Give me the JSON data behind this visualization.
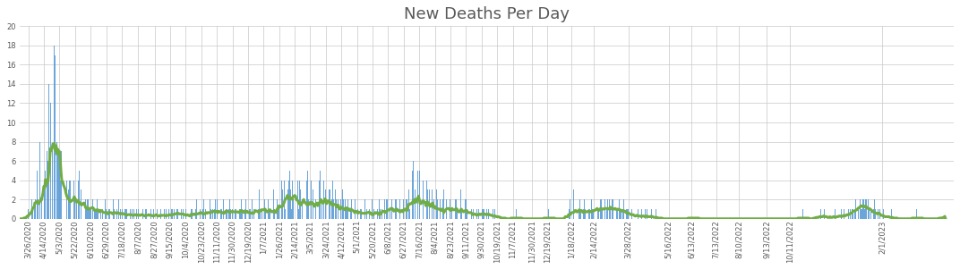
{
  "title": "New Deaths Per Day",
  "title_fontsize": 13,
  "title_color": "#595959",
  "bar_color": "#5B9BD5",
  "bar_alpha": 0.9,
  "line_color": "#70AD47",
  "line_width": 2.2,
  "ylim": [
    0,
    20
  ],
  "yticks": [
    0,
    2,
    4,
    6,
    8,
    10,
    12,
    14,
    16,
    18,
    20
  ],
  "background_color": "#FFFFFF",
  "grid_color": "#C8C8C8",
  "tick_label_color": "#595959",
  "tick_fontsize": 6.0,
  "smoothing_sigma": 7,
  "date_start": "2020-03-16",
  "x_tick_dates": [
    "3/26/2020",
    "4/14/2020",
    "5/3/2020",
    "5/22/2020",
    "6/10/2020",
    "6/29/2020",
    "7/18/2020",
    "8/7/2020",
    "8/27/2020",
    "9/15/2020",
    "10/4/2020",
    "10/23/2020",
    "11/11/2020",
    "11/30/2020",
    "12/19/2020",
    "1/7/2021",
    "1/26/2021",
    "2/14/2021",
    "3/5/2021",
    "3/24/2021",
    "4/12/2021",
    "5/1/2021",
    "5/20/2021",
    "6/8/2021",
    "6/27/2021",
    "7/16/2021",
    "8/4/2021",
    "8/23/2021",
    "9/11/2021",
    "9/30/2021",
    "10/19/2021",
    "11/7/2021",
    "11/30/2021",
    "12/19/2021",
    "1/18/2022",
    "2/14/2022",
    "3/28/2022",
    "5/16/2022",
    "6/13/2022",
    "7/13/2022",
    "8/10/2022",
    "9/13/2022",
    "10/11/2022",
    "2/1/2023"
  ],
  "raw_deaths": [
    0,
    0,
    0,
    0,
    0,
    0,
    0,
    0,
    0,
    0,
    1,
    0,
    0,
    0,
    2,
    1,
    0,
    2,
    1,
    2,
    0,
    5,
    2,
    0,
    8,
    0,
    2,
    0,
    0,
    0,
    3,
    5,
    0,
    7,
    6,
    14,
    0,
    12,
    0,
    7,
    0,
    13,
    18,
    17,
    0,
    8,
    7,
    7,
    6,
    4,
    7,
    0,
    7,
    4,
    0,
    0,
    0,
    4,
    0,
    3,
    4,
    4,
    0,
    0,
    4,
    0,
    4,
    2,
    0,
    2,
    0,
    4,
    5,
    0,
    3,
    0,
    2,
    1,
    0,
    0,
    2,
    1,
    2,
    2,
    1,
    1,
    1,
    0,
    1,
    2,
    0,
    1,
    1,
    1,
    2,
    1,
    0,
    0,
    1,
    2,
    0,
    1,
    0,
    0,
    2,
    1,
    0,
    0,
    1,
    1,
    0,
    0,
    1,
    0,
    2,
    1,
    0,
    0,
    1,
    0,
    2,
    0,
    1,
    0,
    0,
    1,
    0,
    0,
    1,
    1,
    1,
    0,
    0,
    0,
    1,
    0,
    0,
    1,
    0,
    1,
    0,
    0,
    1,
    0,
    1,
    0,
    1,
    0,
    0,
    0,
    1,
    0,
    0,
    1,
    1,
    0,
    0,
    0,
    0,
    1,
    1,
    0,
    0,
    1,
    0,
    0,
    0,
    1,
    0,
    0,
    1,
    0,
    1,
    0,
    0,
    0,
    1,
    0,
    1,
    0,
    0,
    1,
    0,
    0,
    0,
    1,
    1,
    0,
    1,
    0,
    0,
    1,
    1,
    0,
    1,
    1,
    0,
    1,
    0,
    1,
    0,
    0,
    1,
    0,
    0,
    1,
    0,
    0,
    0,
    1,
    1,
    0,
    0,
    0,
    1,
    2,
    0,
    0,
    1,
    0,
    1,
    0,
    0,
    1,
    2,
    0,
    1,
    0,
    0,
    1,
    0,
    0,
    2,
    1,
    0,
    1,
    0,
    1,
    2,
    0,
    2,
    1,
    0,
    0,
    0,
    1,
    1,
    0,
    2,
    0,
    0,
    1,
    1,
    0,
    1,
    1,
    2,
    1,
    0,
    1,
    0,
    0,
    1,
    1,
    0,
    2,
    0,
    0,
    1,
    1,
    2,
    1,
    0,
    0,
    1,
    2,
    0,
    1,
    0,
    0,
    1,
    1,
    0,
    2,
    0,
    1,
    0,
    0,
    0,
    2,
    0,
    1,
    3,
    1,
    0,
    1,
    0,
    0,
    2,
    1,
    2,
    0,
    0,
    2,
    1,
    1,
    0,
    0,
    0,
    3,
    1,
    0,
    0,
    0,
    2,
    1,
    1,
    0,
    0,
    4,
    3,
    0,
    4,
    1,
    2,
    0,
    0,
    3,
    4,
    5,
    3,
    1,
    4,
    2,
    0,
    3,
    1,
    2,
    0,
    4,
    1,
    4,
    3,
    0,
    2,
    0,
    0,
    2,
    1,
    0,
    4,
    5,
    2,
    0,
    0,
    4,
    0,
    3,
    0,
    0,
    3,
    2,
    0,
    0,
    0,
    4,
    5,
    0,
    2,
    0,
    4,
    1,
    4,
    3,
    0,
    0,
    0,
    3,
    3,
    0,
    2,
    4,
    2,
    0,
    0,
    3,
    2,
    0,
    2,
    0,
    0,
    2,
    0,
    3,
    2,
    0,
    0,
    2,
    1,
    1,
    2,
    0,
    0,
    1,
    2,
    0,
    1,
    2,
    0,
    2,
    0,
    0,
    1,
    0,
    0,
    1,
    1,
    0,
    0,
    2,
    0,
    2,
    0,
    1,
    0,
    0,
    1,
    0,
    0,
    2,
    1,
    0,
    1,
    0,
    0,
    0,
    1,
    0,
    2,
    1,
    0,
    1,
    0,
    0,
    0,
    2,
    0,
    2,
    2,
    0,
    0,
    1,
    0,
    2,
    2,
    2,
    0,
    0,
    2,
    2,
    0,
    0,
    0,
    2,
    0,
    0,
    2,
    0,
    2,
    0,
    0,
    2,
    2,
    0,
    3,
    1,
    0,
    0,
    0,
    5,
    6,
    0,
    3,
    0,
    0,
    5,
    0,
    5,
    0,
    0,
    5,
    0,
    4,
    0,
    0,
    0,
    4,
    3,
    0,
    3,
    0,
    0,
    3,
    3,
    0,
    2,
    0,
    0,
    3,
    2,
    0,
    0,
    2,
    0,
    0,
    0,
    2,
    3,
    0,
    0,
    2,
    0,
    0,
    0,
    2,
    2,
    3,
    1,
    0,
    0,
    0,
    2,
    2,
    1,
    0,
    0,
    0,
    1,
    3,
    1,
    0,
    0,
    0,
    2,
    2,
    1,
    0,
    0,
    1,
    1,
    0,
    1,
    0,
    1,
    0,
    0,
    0,
    1,
    0,
    1,
    1,
    0,
    0,
    0,
    1,
    1,
    1,
    0,
    0,
    1,
    0,
    1,
    0,
    1,
    0,
    0,
    0,
    1,
    0,
    1,
    0,
    0,
    0,
    0,
    0,
    1,
    0,
    0,
    0,
    0,
    0,
    0,
    0,
    0,
    0,
    0,
    0,
    0,
    0,
    0,
    0,
    0,
    0,
    0,
    0,
    1,
    0,
    0,
    0,
    0,
    0,
    0,
    0,
    0,
    0,
    0,
    0,
    0,
    0,
    0,
    0,
    0,
    0,
    0,
    0,
    0,
    0,
    0,
    0,
    0,
    0,
    0,
    0,
    0,
    0,
    0,
    0,
    0,
    0,
    0,
    0,
    0,
    0,
    0,
    0,
    1,
    0,
    0,
    0,
    0,
    0,
    0,
    0,
    0,
    0,
    0,
    0,
    0,
    0,
    0,
    0,
    0,
    0,
    0,
    0,
    0,
    0,
    0,
    0,
    0,
    1,
    2,
    0,
    0,
    0,
    3,
    0,
    0,
    2,
    1,
    0,
    0,
    1,
    2,
    1,
    0,
    0,
    1,
    2,
    1,
    0,
    1,
    0,
    0,
    1,
    1,
    0,
    2,
    1,
    1,
    0,
    0,
    2,
    2,
    0,
    1,
    1,
    0,
    2,
    2,
    1,
    0,
    0,
    2,
    2,
    0,
    1,
    2,
    0,
    2,
    1,
    0,
    2,
    2,
    0,
    1,
    2,
    0,
    1,
    1,
    0,
    2,
    1,
    1,
    0,
    1,
    2,
    1,
    0,
    0,
    1,
    1,
    1,
    0,
    0,
    0,
    1,
    0,
    0,
    1,
    1,
    0,
    0,
    0,
    1,
    0,
    0,
    0,
    1,
    0,
    0,
    0,
    0,
    1,
    0,
    1,
    0,
    0,
    0,
    0,
    1,
    0,
    0,
    0,
    0,
    0,
    1,
    0,
    0,
    0,
    0,
    0,
    0,
    0,
    0,
    0,
    0,
    0,
    0,
    0,
    0,
    0,
    0,
    0,
    0,
    0,
    0,
    0,
    0,
    0,
    0,
    0,
    0,
    0,
    0,
    0,
    0,
    0,
    0,
    0,
    0,
    0,
    0,
    0,
    0,
    0,
    0,
    0,
    0,
    0,
    0,
    1,
    0,
    0,
    0,
    0,
    0,
    0,
    0,
    0,
    0,
    0,
    0,
    0,
    0,
    0,
    0,
    0,
    0,
    0,
    0,
    0,
    0,
    0,
    0,
    0,
    0,
    0,
    0,
    0,
    0,
    0,
    0,
    0,
    0,
    0,
    0,
    0,
    0,
    0,
    0,
    0,
    0,
    0,
    0,
    0,
    0,
    0,
    0,
    0,
    0,
    0,
    0,
    0,
    0,
    0,
    0,
    0,
    0,
    0,
    0,
    0,
    0,
    0,
    0,
    0,
    0,
    0,
    0,
    0,
    0,
    0,
    0,
    0,
    0,
    0,
    0,
    0,
    0,
    0,
    0,
    0,
    0,
    0,
    0,
    0,
    0,
    0,
    0,
    0,
    0,
    0,
    0,
    0,
    0,
    0,
    0,
    0,
    0,
    0,
    0,
    0,
    0,
    0,
    0,
    0,
    0,
    0,
    0,
    0,
    0,
    0,
    0,
    0,
    0,
    0,
    0,
    0,
    0,
    0,
    0,
    0,
    0,
    0,
    0,
    0,
    0,
    0,
    0,
    0,
    0,
    0,
    0,
    0,
    0,
    1,
    0,
    0,
    0,
    0,
    0,
    0,
    0,
    0,
    0,
    0,
    0,
    0,
    0,
    0,
    0,
    0,
    0,
    0,
    1,
    0,
    0,
    1,
    0,
    0,
    0,
    1,
    0,
    0,
    0,
    0,
    1,
    0,
    0,
    0,
    0,
    0,
    0,
    0,
    1,
    0,
    0,
    0,
    1,
    0,
    0,
    0,
    1,
    0,
    0,
    1,
    0,
    0,
    0,
    1,
    0,
    1,
    0,
    1,
    0,
    1,
    1,
    0,
    1,
    2,
    0,
    1,
    2,
    1,
    0,
    2,
    1,
    1,
    2,
    2,
    1,
    2,
    2,
    1,
    0,
    2,
    1,
    0,
    1,
    0,
    0,
    1,
    2,
    1,
    0,
    1,
    0,
    1,
    0,
    1,
    0,
    0,
    0,
    1,
    0,
    0,
    0,
    1,
    0,
    0,
    0,
    0,
    0,
    1,
    0,
    0,
    0,
    0,
    0,
    0,
    0,
    0,
    0,
    0,
    0,
    0,
    0,
    0,
    0,
    0,
    0,
    0,
    0,
    0,
    0,
    0,
    0,
    0,
    0,
    0,
    0,
    0,
    0,
    0,
    1,
    0,
    0,
    0,
    0,
    0,
    0,
    0,
    0,
    0,
    0,
    0,
    0,
    0,
    0,
    0,
    0,
    0,
    0,
    0,
    0,
    0,
    0,
    0,
    0,
    0,
    0,
    0,
    0,
    0,
    0,
    0,
    0,
    1,
    0,
    0
  ]
}
